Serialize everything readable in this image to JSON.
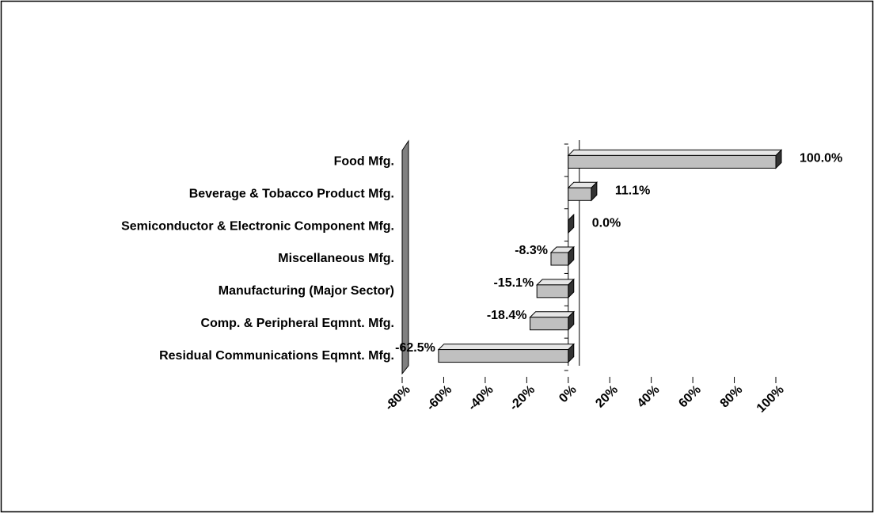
{
  "chart_data": {
    "type": "bar",
    "orientation": "horizontal",
    "categories": [
      "Food Mfg.",
      "Beverage & Tobacco Product Mfg.",
      "Semiconductor & Electronic Component Mfg.",
      "Miscellaneous Mfg.",
      "Manufacturing (Major Sector)",
      "Comp. & Peripheral Eqmnt. Mfg.",
      "Residual Communications Eqmnt. Mfg."
    ],
    "values": [
      100.0,
      11.1,
      0.0,
      -8.3,
      -15.1,
      -18.4,
      -62.5
    ],
    "value_labels": [
      "100.0%",
      "11.1%",
      "0.0%",
      "-8.3%",
      "-15.1%",
      "-18.4%",
      "-62.5%"
    ],
    "color": "#c0c0c0",
    "xlim": [
      -80,
      100
    ],
    "xticks": [
      {
        "value": -80,
        "label": "-80%"
      },
      {
        "value": -60,
        "label": "-60%"
      },
      {
        "value": -40,
        "label": "-40%"
      },
      {
        "value": -20,
        "label": "-20%"
      },
      {
        "value": 0,
        "label": "0%"
      },
      {
        "value": 20,
        "label": "20%"
      },
      {
        "value": 40,
        "label": "40%"
      },
      {
        "value": 60,
        "label": "60%"
      },
      {
        "value": 80,
        "label": "80%"
      },
      {
        "value": 100,
        "label": "100%"
      }
    ]
  }
}
